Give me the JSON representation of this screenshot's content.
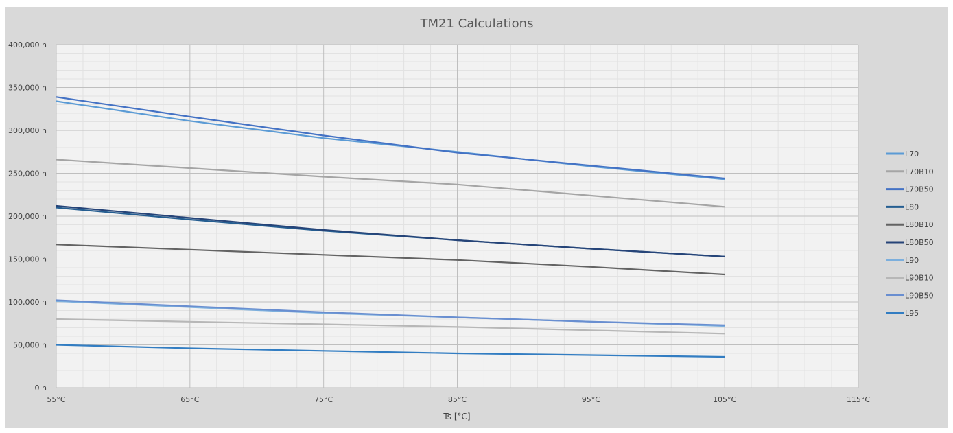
{
  "chart_data": {
    "type": "line",
    "title": "TM21 Calculations",
    "xlabel": "Ts [°C]",
    "ylabel": "",
    "xlim": [
      55,
      115
    ],
    "ylim": [
      0,
      400000
    ],
    "x_ticks": [
      "55°C",
      "65°C",
      "75°C",
      "85°C",
      "95°C",
      "105°C",
      "115°C"
    ],
    "y_ticks": [
      "0 h",
      "50,000 h",
      "100,000 h",
      "150,000 h",
      "200,000 h",
      "250,000 h",
      "300,000 h",
      "350,000 h",
      "400,000 h"
    ],
    "x": [
      55,
      65,
      75,
      85,
      95,
      105
    ],
    "grid": true,
    "legend_position": "right",
    "series": [
      {
        "name": "L70",
        "color": "#5b9bd5",
        "values": [
          334000,
          311000,
          291000,
          275000,
          258000,
          243000
        ]
      },
      {
        "name": "L70B10",
        "color": "#a5a5a5",
        "values": [
          266000,
          256000,
          246000,
          237000,
          224000,
          211000
        ]
      },
      {
        "name": "L70B50",
        "color": "#4472c4",
        "values": [
          339000,
          316000,
          294000,
          274000,
          259000,
          244000
        ]
      },
      {
        "name": "L80",
        "color": "#255e91",
        "values": [
          210000,
          196000,
          183000,
          172000,
          162000,
          153000
        ]
      },
      {
        "name": "L80B10",
        "color": "#636363",
        "values": [
          167000,
          161000,
          155000,
          149000,
          141000,
          132000
        ]
      },
      {
        "name": "L80B50",
        "color": "#264478",
        "values": [
          212000,
          198000,
          184000,
          172000,
          162000,
          153000
        ]
      },
      {
        "name": "L90",
        "color": "#7cafdd",
        "values": [
          101000,
          94000,
          87000,
          82000,
          77000,
          72000
        ]
      },
      {
        "name": "L90B10",
        "color": "#b7b7b7",
        "values": [
          80000,
          77000,
          74000,
          71000,
          67000,
          63000
        ]
      },
      {
        "name": "L90B50",
        "color": "#698ed0",
        "values": [
          102000,
          95000,
          88000,
          82000,
          77000,
          73000
        ]
      },
      {
        "name": "L95",
        "color": "#327dc2",
        "values": [
          50000,
          46000,
          43000,
          40000,
          38000,
          36000
        ]
      }
    ]
  }
}
